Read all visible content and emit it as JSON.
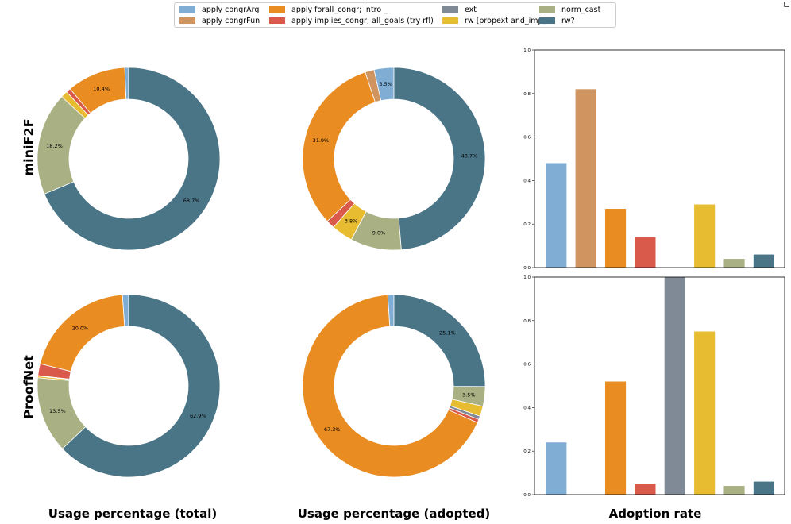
{
  "legend": {
    "items": [
      {
        "label": "apply congrArg",
        "color": "#7fadd4"
      },
      {
        "label": "apply congrFun",
        "color": "#cf945f"
      },
      {
        "label": "apply forall_congr; intro _",
        "color": "#e98c22"
      },
      {
        "label": "apply implies_congr; all_goals (try rfl)",
        "color": "#d95a4a"
      },
      {
        "label": "ext",
        "color": "#7f8a96"
      },
      {
        "label": "rw [propext and_imp]",
        "color": "#e8bc30"
      },
      {
        "label": "norm_cast",
        "color": "#a9b184"
      },
      {
        "label": "rw?",
        "color": "#4a7587"
      }
    ]
  },
  "row_labels": {
    "minif2f": "miniF2F",
    "proofnet": "ProofNet"
  },
  "col_labels": {
    "total": "Usage percentage (total)",
    "adopted": "Usage percentage (adopted)",
    "rate": "Adoption rate"
  },
  "chart_data": [
    {
      "type": "pie",
      "title": "miniF2F — Usage percentage (total)",
      "donut": true,
      "slices": [
        {
          "label": "apply congrArg",
          "value": 0.7
        },
        {
          "label": "apply congrFun",
          "value": 0.0
        },
        {
          "label": "apply forall_congr; intro _",
          "value": 10.4,
          "text": "10.4%"
        },
        {
          "label": "apply implies_congr; all_goals (try rfl)",
          "value": 0.8
        },
        {
          "label": "ext",
          "value": 0.0
        },
        {
          "label": "rw [propext and_imp]",
          "value": 1.2
        },
        {
          "label": "norm_cast",
          "value": 18.2,
          "text": "18.2%"
        },
        {
          "label": "rw?",
          "value": 68.7,
          "text": "68.7%"
        }
      ]
    },
    {
      "type": "pie",
      "title": "miniF2F — Usage percentage (adopted)",
      "donut": true,
      "slices": [
        {
          "label": "apply congrArg",
          "value": 3.5,
          "text": "3.5%"
        },
        {
          "label": "apply congrFun",
          "value": 1.6
        },
        {
          "label": "apply forall_congr; intro _",
          "value": 31.9,
          "text": "31.9%"
        },
        {
          "label": "apply implies_congr; all_goals (try rfl)",
          "value": 1.5
        },
        {
          "label": "ext",
          "value": 0.0
        },
        {
          "label": "rw [propext and_imp]",
          "value": 3.8,
          "text": "3.8%"
        },
        {
          "label": "norm_cast",
          "value": 9.0,
          "text": "9.0%"
        },
        {
          "label": "rw?",
          "value": 48.7,
          "text": "48.7%"
        }
      ]
    },
    {
      "type": "bar",
      "title": "miniF2F — Adoption rate",
      "categories": [
        "apply congrArg",
        "apply congrFun",
        "apply forall_congr; intro _",
        "apply implies_congr; all_goals (try rfl)",
        "ext",
        "rw [propext and_imp]",
        "norm_cast",
        "rw?"
      ],
      "values": [
        0.48,
        0.82,
        0.27,
        0.14,
        0,
        0.29,
        0.04,
        0.06
      ],
      "ylim": [
        0,
        1
      ],
      "yticks": [
        "0.0",
        "0.2",
        "0.4",
        "0.6",
        "0.8",
        "1.0"
      ]
    },
    {
      "type": "pie",
      "title": "ProofNet — Usage percentage (total)",
      "donut": true,
      "slices": [
        {
          "label": "apply congrArg",
          "value": 1.1
        },
        {
          "label": "apply congrFun",
          "value": 0.0
        },
        {
          "label": "apply forall_congr; intro _",
          "value": 20.0,
          "text": "20.0%"
        },
        {
          "label": "apply implies_congr; all_goals (try rfl)",
          "value": 2.1
        },
        {
          "label": "ext",
          "value": 0.1
        },
        {
          "label": "rw [propext and_imp]",
          "value": 0.3
        },
        {
          "label": "norm_cast",
          "value": 13.5,
          "text": "13.5%"
        },
        {
          "label": "rw?",
          "value": 62.9,
          "text": "62.9%"
        }
      ]
    },
    {
      "type": "pie",
      "title": "ProofNet — Usage percentage (adopted)",
      "donut": true,
      "slices": [
        {
          "label": "apply congrArg",
          "value": 1.1
        },
        {
          "label": "apply congrFun",
          "value": 0.0
        },
        {
          "label": "apply forall_congr; intro _",
          "value": 67.3,
          "text": "67.3%"
        },
        {
          "label": "apply implies_congr; all_goals (try rfl)",
          "value": 0.6
        },
        {
          "label": "ext",
          "value": 0.6
        },
        {
          "label": "rw [propext and_imp]",
          "value": 1.8
        },
        {
          "label": "norm_cast",
          "value": 3.5,
          "text": "3.5%"
        },
        {
          "label": "rw?",
          "value": 25.1,
          "text": "25.1%"
        }
      ]
    },
    {
      "type": "bar",
      "title": "ProofNet — Adoption rate",
      "categories": [
        "apply congrArg",
        "apply congrFun",
        "apply forall_congr; intro _",
        "apply implies_congr; all_goals (try rfl)",
        "ext",
        "rw [propext and_imp]",
        "norm_cast",
        "rw?"
      ],
      "values": [
        0.24,
        0,
        0.52,
        0.05,
        1.0,
        0.75,
        0.04,
        0.06
      ],
      "ylim": [
        0,
        1
      ],
      "yticks": [
        "0.0",
        "0.2",
        "0.4",
        "0.6",
        "0.8",
        "1.0"
      ]
    }
  ]
}
